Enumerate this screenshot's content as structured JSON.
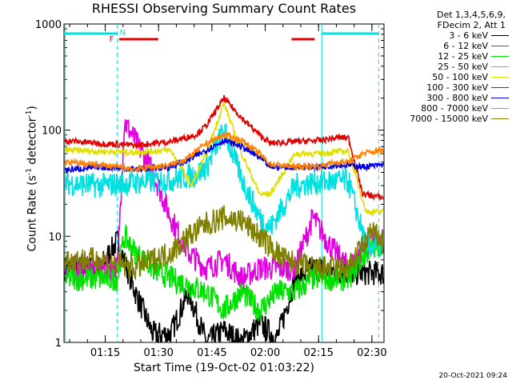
{
  "chart_data": {
    "type": "line",
    "title": "RHESSI Observing Summary Count Rates",
    "xlabel": "Start Time (19-Oct-02 01:03:22)",
    "ylabel_main": "Count Rate (s",
    "ylabel_sup1": "-1",
    "ylabel_mid": " detector",
    "ylabel_sup2": "-1",
    "ylabel_end": ")",
    "yscale": "log",
    "ylim": [
      1,
      1000
    ],
    "xlim_minutes": [
      0,
      90
    ],
    "x_unit": "minutes after 01:03:22",
    "x_ticks": [
      {
        "t": 11.6,
        "label": "01:15"
      },
      {
        "t": 26.6,
        "label": "01:30"
      },
      {
        "t": 41.6,
        "label": "01:45"
      },
      {
        "t": 56.6,
        "label": "02:00"
      },
      {
        "t": 71.6,
        "label": "02:15"
      },
      {
        "t": 86.6,
        "label": "02:30"
      }
    ],
    "y_ticks": [
      {
        "v": 1,
        "label": "1"
      },
      {
        "v": 10,
        "label": "10"
      },
      {
        "v": 100,
        "label": "100"
      },
      {
        "v": 1000,
        "label": "1000"
      }
    ],
    "legend_header": [
      "Det 1,3,4,5,6,9,",
      "FDecim 2, Att 1"
    ],
    "legend_placement": "right",
    "series": [
      {
        "name": "3 - 6 keV",
        "color": "#000000",
        "points": [
          [
            0,
            5
          ],
          [
            10,
            5
          ],
          [
            15,
            9
          ],
          [
            20,
            3
          ],
          [
            25,
            1.2
          ],
          [
            30,
            1.2
          ],
          [
            35,
            3
          ],
          [
            40,
            1
          ],
          [
            45,
            1.3
          ],
          [
            50,
            1
          ],
          [
            55,
            1.5
          ],
          [
            60,
            1.1
          ],
          [
            65,
            4
          ],
          [
            70,
            5
          ],
          [
            80,
            4.5
          ],
          [
            85,
            4.5
          ],
          [
            90,
            4.5
          ]
        ]
      },
      {
        "name": "6 - 12 keV",
        "color": "#e000e0",
        "points": [
          [
            0,
            5
          ],
          [
            15,
            5
          ],
          [
            17,
            120
          ],
          [
            20,
            80
          ],
          [
            25,
            40
          ],
          [
            30,
            15
          ],
          [
            35,
            7
          ],
          [
            40,
            5
          ],
          [
            45,
            6
          ],
          [
            50,
            4
          ],
          [
            55,
            5
          ],
          [
            60,
            5
          ],
          [
            65,
            5
          ],
          [
            70,
            15
          ],
          [
            75,
            8
          ],
          [
            80,
            5
          ],
          [
            85,
            8
          ],
          [
            90,
            9
          ]
        ]
      },
      {
        "name": "12 - 25 keV",
        "color": "#00e000",
        "points": [
          [
            0,
            4
          ],
          [
            15,
            4
          ],
          [
            17,
            10
          ],
          [
            20,
            7
          ],
          [
            25,
            5
          ],
          [
            30,
            4
          ],
          [
            40,
            3
          ],
          [
            45,
            2
          ],
          [
            50,
            3
          ],
          [
            55,
            2
          ],
          [
            60,
            3
          ],
          [
            65,
            3
          ],
          [
            70,
            4
          ],
          [
            80,
            4
          ],
          [
            85,
            7
          ],
          [
            90,
            9
          ]
        ]
      },
      {
        "name": "25 - 50 keV",
        "color": "#00e0e0",
        "points": [
          [
            0,
            32
          ],
          [
            10,
            30
          ],
          [
            20,
            32
          ],
          [
            30,
            34
          ],
          [
            37,
            38
          ],
          [
            40,
            45
          ],
          [
            45,
            100
          ],
          [
            50,
            35
          ],
          [
            55,
            15
          ],
          [
            58,
            12
          ],
          [
            65,
            30
          ],
          [
            70,
            32
          ],
          [
            77,
            33
          ],
          [
            80,
            33
          ],
          [
            85,
            8
          ],
          [
            90,
            8
          ]
        ]
      },
      {
        "name": "50 - 100 keV",
        "color": "#e0e000",
        "points": [
          [
            0,
            65
          ],
          [
            10,
            63
          ],
          [
            20,
            62
          ],
          [
            30,
            65
          ],
          [
            36,
            30
          ],
          [
            40,
            60
          ],
          [
            45,
            180
          ],
          [
            50,
            60
          ],
          [
            55,
            25
          ],
          [
            58,
            25
          ],
          [
            65,
            60
          ],
          [
            72,
            60
          ],
          [
            77,
            63
          ],
          [
            80,
            63
          ],
          [
            85,
            17
          ],
          [
            90,
            17
          ]
        ]
      },
      {
        "name": "100 - 300 keV",
        "color": "#e00000",
        "points": [
          [
            0,
            80
          ],
          [
            10,
            75
          ],
          [
            20,
            72
          ],
          [
            30,
            78
          ],
          [
            37,
            90
          ],
          [
            40,
            110
          ],
          [
            45,
            200
          ],
          [
            50,
            130
          ],
          [
            55,
            90
          ],
          [
            58,
            75
          ],
          [
            65,
            78
          ],
          [
            72,
            80
          ],
          [
            77,
            85
          ],
          [
            80,
            85
          ],
          [
            84,
            25
          ],
          [
            90,
            23
          ]
        ]
      },
      {
        "name": "300 - 800 keV",
        "color": "#0000e0",
        "points": [
          [
            0,
            42
          ],
          [
            10,
            45
          ],
          [
            20,
            43
          ],
          [
            30,
            45
          ],
          [
            35,
            52
          ],
          [
            40,
            65
          ],
          [
            45,
            80
          ],
          [
            50,
            70
          ],
          [
            55,
            55
          ],
          [
            58,
            45
          ],
          [
            65,
            45
          ],
          [
            72,
            45
          ],
          [
            77,
            47
          ],
          [
            80,
            47
          ],
          [
            84,
            45
          ],
          [
            90,
            47
          ]
        ]
      },
      {
        "name": "800 - 7000 keV",
        "color": "#ff8000",
        "points": [
          [
            0,
            50
          ],
          [
            10,
            47
          ],
          [
            20,
            43
          ],
          [
            30,
            47
          ],
          [
            35,
            55
          ],
          [
            40,
            75
          ],
          [
            45,
            90
          ],
          [
            50,
            80
          ],
          [
            55,
            60
          ],
          [
            58,
            48
          ],
          [
            65,
            45
          ],
          [
            72,
            46
          ],
          [
            77,
            50
          ],
          [
            80,
            50
          ],
          [
            84,
            60
          ],
          [
            90,
            65
          ]
        ]
      },
      {
        "name": "7000 - 15000 keV",
        "color": "#808000",
        "points": [
          [
            0,
            6
          ],
          [
            10,
            6
          ],
          [
            20,
            5
          ],
          [
            25,
            6
          ],
          [
            30,
            7
          ],
          [
            35,
            10
          ],
          [
            40,
            13
          ],
          [
            45,
            15
          ],
          [
            50,
            14
          ],
          [
            55,
            10
          ],
          [
            58,
            8
          ],
          [
            62,
            6
          ],
          [
            70,
            5
          ],
          [
            75,
            5
          ],
          [
            80,
            5
          ],
          [
            84,
            8
          ],
          [
            86,
            11
          ],
          [
            90,
            9
          ]
        ]
      }
    ],
    "annotations": [
      {
        "text": "F",
        "color": "#e00000"
      },
      {
        "text": "N",
        "color": "#00e0e0"
      }
    ],
    "flare_bars": [
      [
        15.5,
        26.5
      ],
      [
        64,
        70.5
      ]
    ],
    "night_bars": [
      [
        0,
        15
      ],
      [
        72.5,
        88.5
      ]
    ],
    "vlines_dashed": [
      15,
      88.5
    ],
    "vlines_solid": [
      0.3,
      72.5
    ]
  },
  "stamp": "20-Oct-2021 09:24"
}
